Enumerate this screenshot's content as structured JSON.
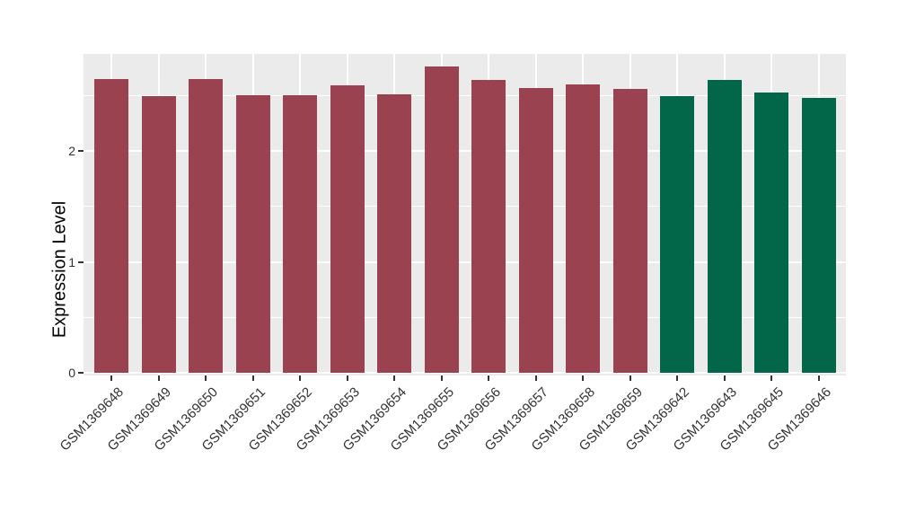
{
  "chart_data": {
    "type": "bar",
    "title": "",
    "xlabel": "",
    "ylabel": "Expression Level",
    "categories": [
      "GSM1369648",
      "GSM1369649",
      "GSM1369650",
      "GSM1369651",
      "GSM1369652",
      "GSM1369653",
      "GSM1369654",
      "GSM1369655",
      "GSM1369656",
      "GSM1369657",
      "GSM1369658",
      "GSM1369659",
      "GSM1369642",
      "GSM1369643",
      "GSM1369645",
      "GSM1369646"
    ],
    "values": [
      2.65,
      2.49,
      2.65,
      2.5,
      2.5,
      2.59,
      2.51,
      2.76,
      2.64,
      2.57,
      2.6,
      2.56,
      2.49,
      2.64,
      2.53,
      2.48
    ],
    "bar_colors": [
      "#9A4250",
      "#9A4250",
      "#9A4250",
      "#9A4250",
      "#9A4250",
      "#9A4250",
      "#9A4250",
      "#9A4250",
      "#9A4250",
      "#9A4250",
      "#9A4250",
      "#9A4250",
      "#026749",
      "#026749",
      "#026749",
      "#026749"
    ],
    "y_ticks": [
      "0",
      "1",
      "2"
    ],
    "y_tick_values": [
      0,
      1,
      2
    ],
    "y_minor_tick_values": [
      0.5,
      1.5,
      2.5
    ],
    "ylim": [
      -0.14,
      2.9
    ],
    "grid": "white major and minor horizontal lines, white vertical lines at category centers, on grey panel",
    "legend": "none",
    "style": {
      "panel_background": "#EBEBEB",
      "gridline_color": "#FFFFFF",
      "tick_color": "#333333",
      "text_color": "#333333",
      "figure_background": "#FFFFFF"
    }
  }
}
